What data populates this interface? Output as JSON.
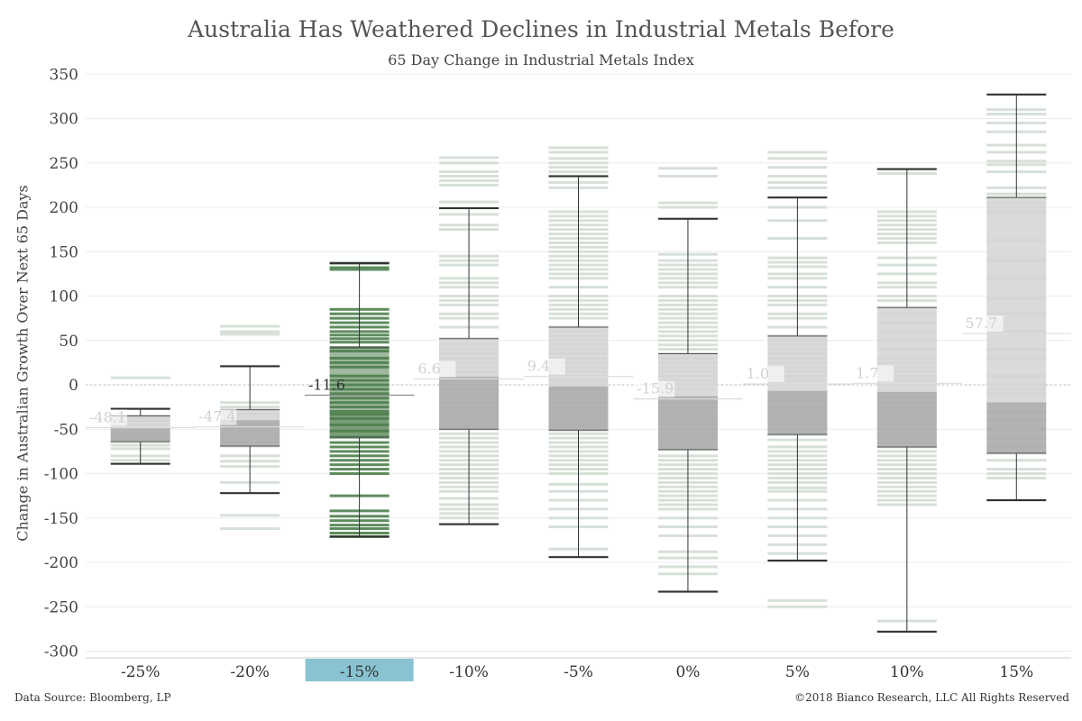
{
  "chart_data": {
    "type": "box",
    "title": "Australia Has Weathered Declines in Industrial Metals Before",
    "subtitle": "65 Day Change in Industrial Metals Index",
    "ylabel": "Change in Australian Growth Over Next 65 Days",
    "xlabel": "",
    "ylim": [
      -310,
      355
    ],
    "yticks": [
      350,
      300,
      250,
      200,
      150,
      100,
      50,
      0,
      -50,
      -100,
      -150,
      -200,
      -250,
      -300
    ],
    "grid": true,
    "highlight_category": "-15%",
    "colors": {
      "highlight_box": "#4e7d4e",
      "highlight_lines": "#5e8c5e",
      "observation_lines": "#d7e0d7",
      "box_upper": "#d3d3d3",
      "box_lower": "#ababab",
      "whisker": "#333333",
      "label_bg": "#89c3d1"
    },
    "categories": [
      "-25%",
      "-20%",
      "-15%",
      "-10%",
      "-5%",
      "0%",
      "5%",
      "10%",
      "15%"
    ],
    "boxes": [
      {
        "category": "-25%",
        "min": -89,
        "q1": -64,
        "median": -49,
        "q3": -35,
        "max": -27,
        "mean": -48.1,
        "mean_label": "-48.1",
        "obs": [
          8,
          -27,
          -35,
          -37,
          -41,
          -45,
          -49,
          -55,
          -58,
          -60,
          -64,
          -68,
          -72,
          -80,
          -85,
          -89
        ]
      },
      {
        "category": "-20%",
        "min": -122,
        "q1": -69,
        "median": -40,
        "q3": -28,
        "max": 21,
        "mean": -47.4,
        "mean_label": "-47.4",
        "obs": [
          66,
          60,
          57,
          21,
          -20,
          -25,
          -28,
          -33,
          -40,
          -45,
          -50,
          -55,
          -60,
          -65,
          -69,
          -80,
          -86,
          -92,
          -110,
          -122,
          -147,
          -162
        ]
      },
      {
        "category": "-15%",
        "min": -171,
        "q1": -59,
        "median": -33,
        "q3": 42,
        "max": 137,
        "mean": -11.6,
        "mean_label": "-11.6",
        "obs": [
          137,
          132,
          130,
          85,
          80,
          75,
          70,
          65,
          60,
          56,
          52,
          48,
          42,
          38,
          30,
          25,
          20,
          10,
          5,
          0,
          -5,
          -10,
          -15,
          -20,
          -25,
          -30,
          -33,
          -38,
          -45,
          -52,
          -59,
          -65,
          -70,
          -75,
          -80,
          -85,
          -90,
          -95,
          -100,
          -125,
          -142,
          -148,
          -153,
          -158,
          -162,
          -167,
          -171
        ]
      },
      {
        "category": "-10%",
        "min": -157,
        "q1": -50,
        "median": 9,
        "q3": 52,
        "max": 199,
        "mean": 6.6,
        "mean_label": "6.6",
        "obs": [
          256,
          250,
          240,
          235,
          230,
          225,
          206,
          199,
          192,
          180,
          175,
          145,
          140,
          135,
          120,
          115,
          110,
          100,
          95,
          90,
          80,
          75,
          65,
          52,
          45,
          40,
          35,
          30,
          25,
          20,
          15,
          9,
          5,
          0,
          -5,
          -10,
          -15,
          -20,
          -25,
          -30,
          -35,
          -40,
          -45,
          -50,
          -55,
          -60,
          -65,
          -70,
          -75,
          -80,
          -85,
          -90,
          -95,
          -100,
          -105,
          -110,
          -115,
          -120,
          -128,
          -135,
          -140,
          -145,
          -150,
          -157
        ]
      },
      {
        "category": "-5%",
        "min": -194,
        "q1": -51,
        "median": -2,
        "q3": 65,
        "max": 235,
        "mean": 9.4,
        "mean_label": "9.4",
        "obs": [
          267,
          262,
          255,
          250,
          245,
          240,
          235,
          228,
          222,
          195,
          190,
          185,
          180,
          175,
          170,
          165,
          160,
          155,
          150,
          145,
          140,
          135,
          130,
          125,
          120,
          110,
          100,
          95,
          90,
          85,
          80,
          75,
          65,
          60,
          55,
          50,
          45,
          40,
          35,
          30,
          25,
          20,
          15,
          10,
          5,
          0,
          -2,
          -5,
          -10,
          -15,
          -20,
          -25,
          -30,
          -35,
          -40,
          -45,
          -51,
          -55,
          -60,
          -65,
          -70,
          -75,
          -80,
          -85,
          -90,
          -95,
          -100,
          -112,
          -120,
          -130,
          -140,
          -150,
          -160,
          -185,
          -194
        ]
      },
      {
        "category": "0%",
        "min": -233,
        "q1": -73,
        "median": -13,
        "q3": 35,
        "max": 187,
        "mean": -15.9,
        "mean_label": "-15.9",
        "obs": [
          244,
          235,
          205,
          200,
          187,
          147,
          140,
          135,
          130,
          125,
          120,
          115,
          110,
          100,
          95,
          90,
          85,
          80,
          75,
          70,
          65,
          60,
          55,
          50,
          45,
          40,
          35,
          30,
          25,
          20,
          15,
          10,
          5,
          0,
          -5,
          -13,
          -20,
          -25,
          -30,
          -35,
          -40,
          -45,
          -50,
          -55,
          -60,
          -65,
          -73,
          -80,
          -85,
          -90,
          -95,
          -100,
          -105,
          -110,
          -115,
          -120,
          -125,
          -130,
          -135,
          -140,
          -150,
          -160,
          -170,
          -188,
          -195,
          -205,
          -213,
          -233
        ]
      },
      {
        "category": "5%",
        "min": -198,
        "q1": -56,
        "median": -7,
        "q3": 55,
        "max": 211,
        "mean": 1.0,
        "mean_label": "1.0",
        "obs": [
          262,
          255,
          245,
          235,
          228,
          222,
          211,
          200,
          185,
          165,
          143,
          138,
          133,
          125,
          120,
          110,
          100,
          95,
          90,
          80,
          75,
          65,
          55,
          50,
          45,
          40,
          35,
          30,
          25,
          20,
          15,
          10,
          5,
          0,
          -7,
          -12,
          -18,
          -25,
          -30,
          -35,
          -40,
          -45,
          -50,
          -56,
          -62,
          -70,
          -75,
          -80,
          -85,
          -90,
          -95,
          -100,
          -105,
          -110,
          -116,
          -120,
          -130,
          -140,
          -150,
          -160,
          -170,
          -180,
          -190,
          -198,
          -243,
          -250
        ]
      },
      {
        "category": "10%",
        "min": -278,
        "q1": -70,
        "median": -8,
        "q3": 87,
        "max": 243,
        "mean": 1.7,
        "mean_label": "1.7",
        "obs": [
          243,
          238,
          195,
          190,
          185,
          180,
          175,
          170,
          165,
          160,
          143,
          135,
          125,
          115,
          110,
          100,
          95,
          87,
          80,
          70,
          60,
          50,
          40,
          30,
          25,
          20,
          15,
          10,
          5,
          0,
          -8,
          -15,
          -20,
          -25,
          -30,
          -35,
          -40,
          -45,
          -50,
          -55,
          -60,
          -65,
          -70,
          -75,
          -80,
          -85,
          -90,
          -95,
          -100,
          -105,
          -110,
          -115,
          -120,
          -125,
          -130,
          -135,
          -266,
          -278
        ]
      },
      {
        "category": "15%",
        "min": -130,
        "q1": -77,
        "median": -20,
        "q3": 211,
        "max": 327,
        "mean": 57.7,
        "mean_label": "57.7",
        "obs": [
          327,
          310,
          305,
          295,
          285,
          270,
          262,
          252,
          248,
          240,
          222,
          215,
          211,
          205,
          200,
          195,
          163,
          140,
          120,
          97,
          80,
          60,
          40,
          30,
          10,
          0,
          -5,
          -10,
          -20,
          -30,
          -40,
          -50,
          -60,
          -70,
          -77,
          -85,
          -95,
          -100,
          -105,
          -130
        ]
      }
    ]
  },
  "footer": {
    "source": "Data Source: Bloomberg, LP",
    "copyright": "©2018 Bianco Research, LLC  All Rights Reserved"
  }
}
